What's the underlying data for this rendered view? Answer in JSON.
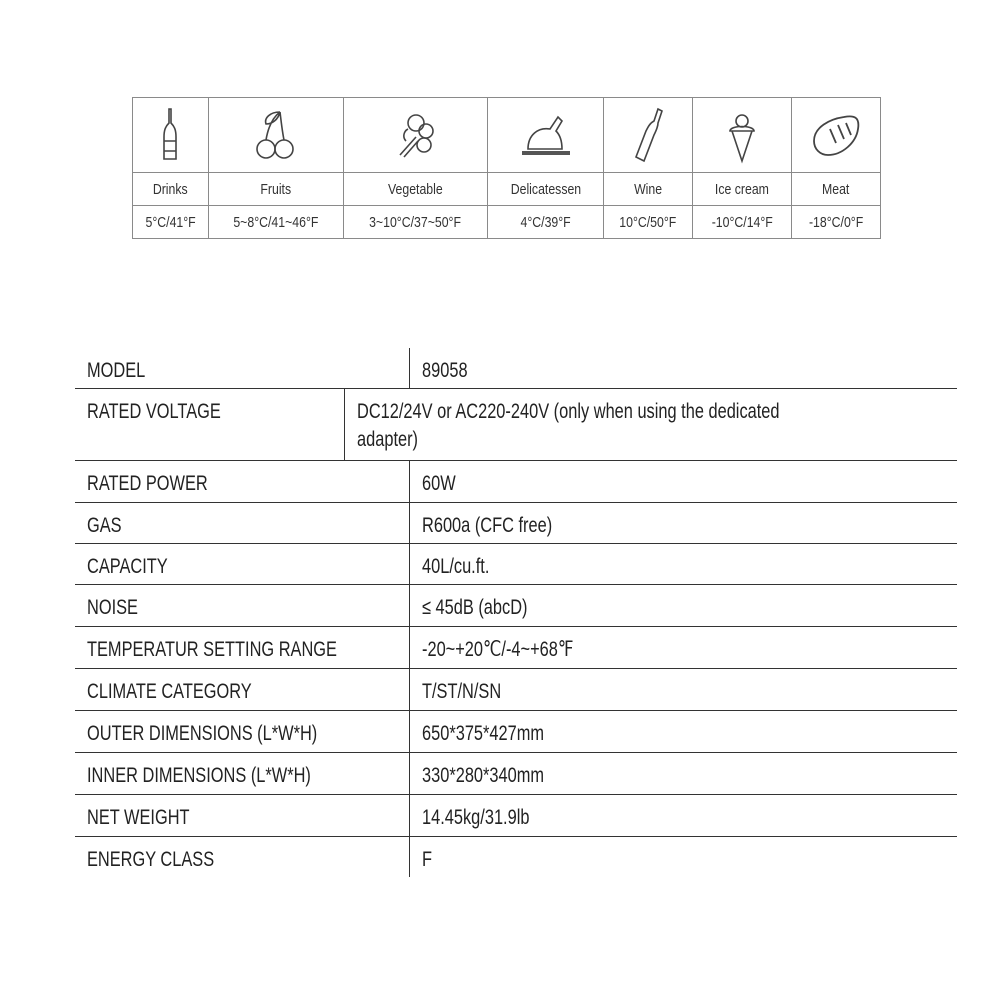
{
  "food_table": [
    {
      "icon": "bottle-icon",
      "name": "Drinks",
      "temp": "5°C/41°F"
    },
    {
      "icon": "cherry-icon",
      "name": "Fruits",
      "temp": "5~8°C/41~46°F"
    },
    {
      "icon": "vegetable-icon",
      "name": "Vegetable",
      "temp": "3~10°C/37~50°F"
    },
    {
      "icon": "roast-chicken-icon",
      "name": "Delicatessen",
      "temp": "4°C/39°F"
    },
    {
      "icon": "wine-bottle-icon",
      "name": "Wine",
      "temp": "10°C/50°F"
    },
    {
      "icon": "ice-cream-icon",
      "name": "Ice cream",
      "temp": "-10°C/14°F"
    },
    {
      "icon": "steak-icon",
      "name": "Meat",
      "temp": "-18°C/0°F"
    }
  ],
  "specs": [
    {
      "label": "MODEL",
      "value": "89058"
    },
    {
      "label": "RATED VOLTAGE",
      "value": "DC12/24V or AC220-240V (only when using the dedicated adapter)"
    },
    {
      "label": "RATED POWER",
      "value": "60W"
    },
    {
      "label": "GAS",
      "value": "R600a (CFC free)"
    },
    {
      "label": "CAPACITY",
      "value": "40L/cu.ft."
    },
    {
      "label": "NOISE",
      "value": "≤ 45dB (abcD)"
    },
    {
      "label": "TEMPERATUR SETTING RANGE",
      "value": "-20~+20℃/-4~+68℉"
    },
    {
      "label": "CLIMATE CATEGORY",
      "value": "T/ST/N/SN"
    },
    {
      "label": "OUTER DIMENSIONS (L*W*H)",
      "value": "650*375*427mm"
    },
    {
      "label": "INNER DIMENSIONS (L*W*H)",
      "value": "330*280*340mm"
    },
    {
      "label": "NET WEIGHT",
      "value": "14.45kg/31.9lb"
    },
    {
      "label": "ENERGY CLASS",
      "value": "F"
    }
  ]
}
